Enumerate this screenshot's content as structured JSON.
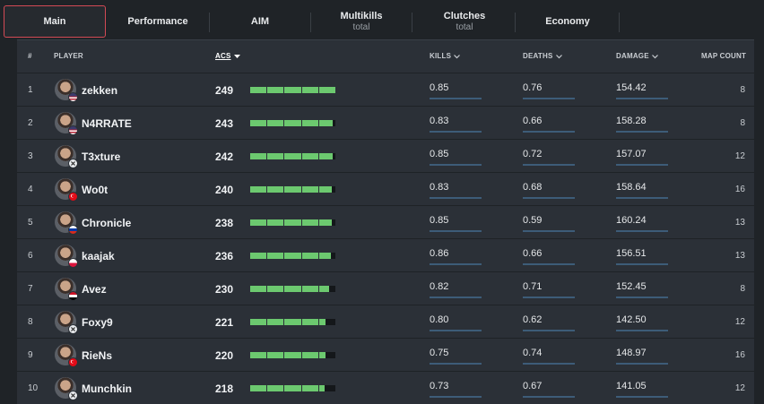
{
  "tabs": [
    {
      "label": "Main",
      "sub": "",
      "active": true
    },
    {
      "label": "Performance",
      "sub": ""
    },
    {
      "label": "AIM",
      "sub": ""
    },
    {
      "label": "Multikills",
      "sub": "total"
    },
    {
      "label": "Clutches",
      "sub": "total"
    },
    {
      "label": "Economy",
      "sub": ""
    }
  ],
  "columns": {
    "rank": "#",
    "player": "PLAYER",
    "acs": "ACS",
    "kills": "KILLS",
    "deaths": "DEATHS",
    "damage": "DAMAGE",
    "map_count": "MAP COUNT"
  },
  "sorted_by": "ACS",
  "acs_bar_max": 250,
  "colors": {
    "accent_tab_border": "#d34a55",
    "bar_fill": "#6cc96f",
    "stat_line": "#3d5c78"
  },
  "rows": [
    {
      "rank": "1",
      "player": "zekken",
      "flag": "us",
      "acs": "249",
      "acs_value": 249,
      "kills": "0.85",
      "deaths": "0.76",
      "damage": "154.42",
      "maps": "8"
    },
    {
      "rank": "2",
      "player": "N4RRATE",
      "flag": "us",
      "acs": "243",
      "acs_value": 243,
      "kills": "0.83",
      "deaths": "0.66",
      "damage": "158.28",
      "maps": "8"
    },
    {
      "rank": "3",
      "player": "T3xture",
      "flag": "x",
      "acs": "242",
      "acs_value": 242,
      "kills": "0.85",
      "deaths": "0.72",
      "damage": "157.07",
      "maps": "12"
    },
    {
      "rank": "4",
      "player": "Wo0t",
      "flag": "tr",
      "acs": "240",
      "acs_value": 240,
      "kills": "0.83",
      "deaths": "0.68",
      "damage": "158.64",
      "maps": "16"
    },
    {
      "rank": "5",
      "player": "Chronicle",
      "flag": "ru",
      "acs": "238",
      "acs_value": 238,
      "kills": "0.85",
      "deaths": "0.59",
      "damage": "160.24",
      "maps": "13"
    },
    {
      "rank": "6",
      "player": "kaajak",
      "flag": "pl",
      "acs": "236",
      "acs_value": 236,
      "kills": "0.86",
      "deaths": "0.66",
      "damage": "156.51",
      "maps": "13"
    },
    {
      "rank": "7",
      "player": "Avez",
      "flag": "eg",
      "acs": "230",
      "acs_value": 230,
      "kills": "0.82",
      "deaths": "0.71",
      "damage": "152.45",
      "maps": "8"
    },
    {
      "rank": "8",
      "player": "Foxy9",
      "flag": "x",
      "acs": "221",
      "acs_value": 221,
      "kills": "0.80",
      "deaths": "0.62",
      "damage": "142.50",
      "maps": "12"
    },
    {
      "rank": "9",
      "player": "RieNs",
      "flag": "tr",
      "acs": "220",
      "acs_value": 220,
      "kills": "0.75",
      "deaths": "0.74",
      "damage": "148.97",
      "maps": "16"
    },
    {
      "rank": "10",
      "player": "Munchkin",
      "flag": "x",
      "acs": "218",
      "acs_value": 218,
      "kills": "0.73",
      "deaths": "0.67",
      "damage": "141.05",
      "maps": "12"
    }
  ]
}
